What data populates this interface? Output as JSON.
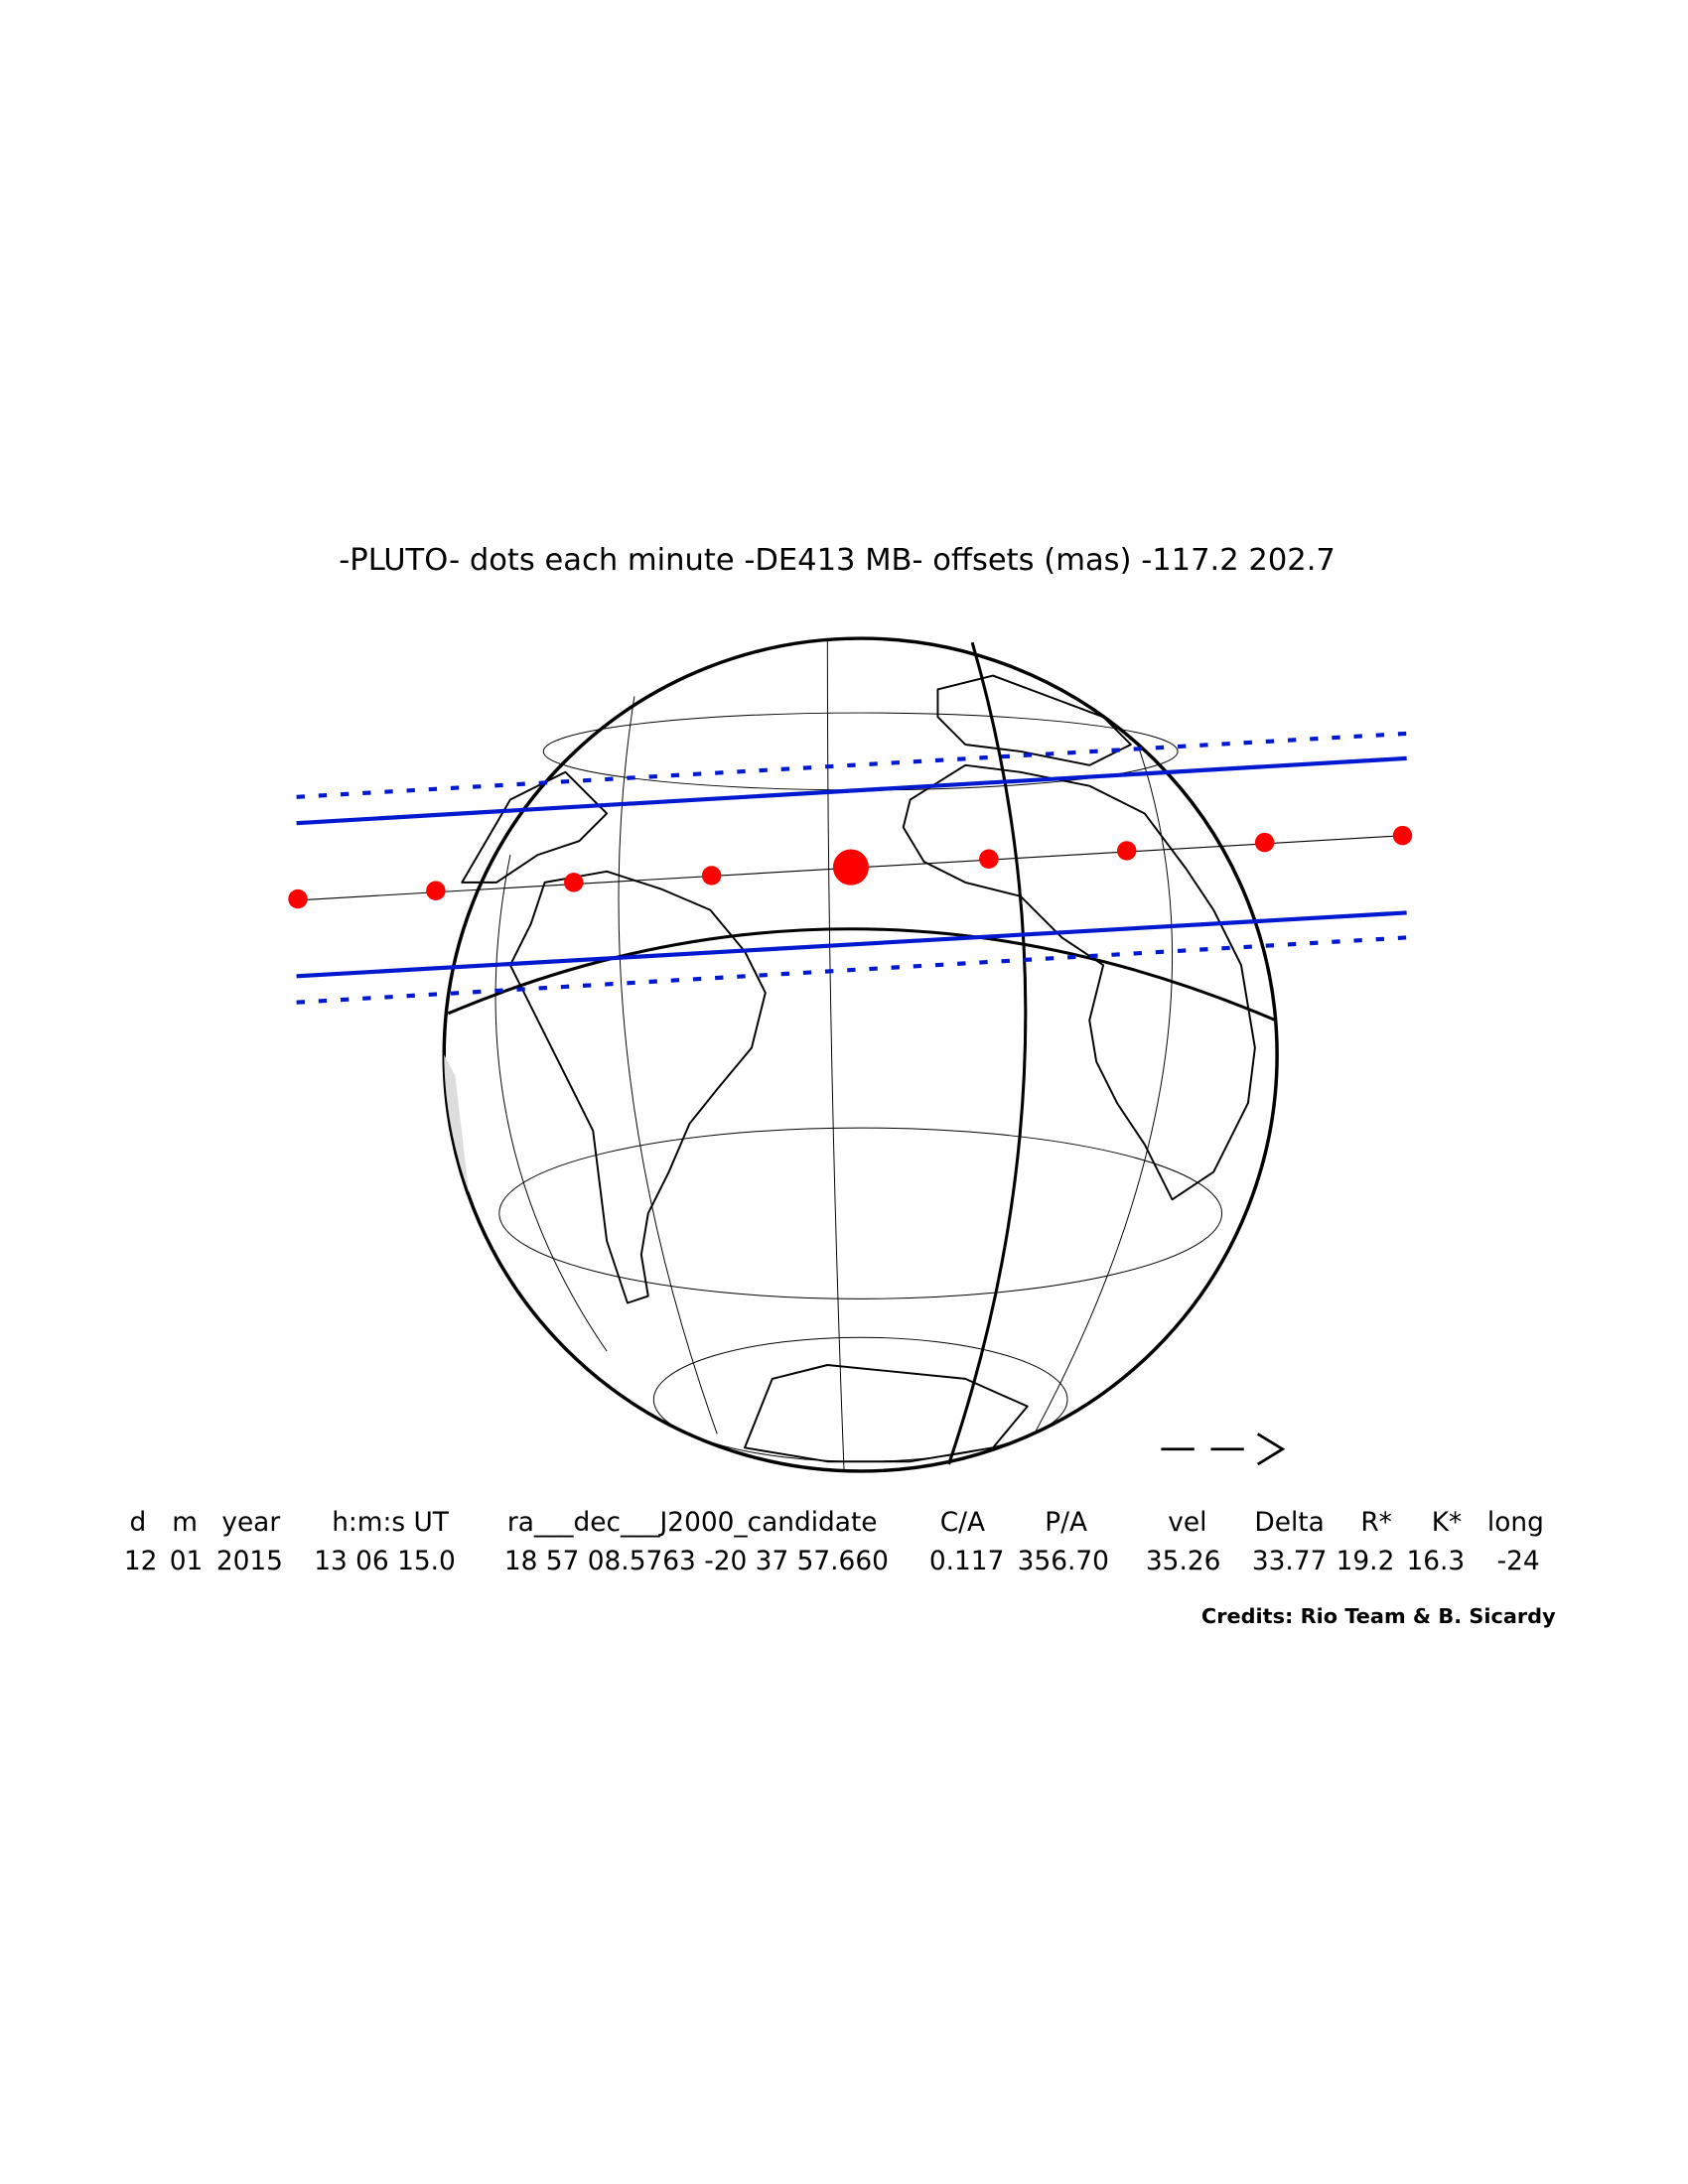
{
  "title": "-PLUTO- dots each minute -DE413 MB- offsets (mas) -117.2  202.7",
  "table": {
    "headers": [
      "d",
      "m",
      "year",
      "h:m:s UT",
      "ra___dec___J2000_candidate",
      "C/A",
      "P/A",
      "vel",
      "Delta",
      "R*",
      "K*",
      "long"
    ],
    "values": [
      "12",
      "01",
      "2015",
      "13 06 15.0",
      "18 57 08.5763 -20 37 57.660",
      "0.117",
      "356.70",
      "35.26",
      "33.77",
      "19.2",
      "16.3",
      "-24"
    ]
  },
  "credits": "Credits: Rio Team & B. Sicardy"
}
